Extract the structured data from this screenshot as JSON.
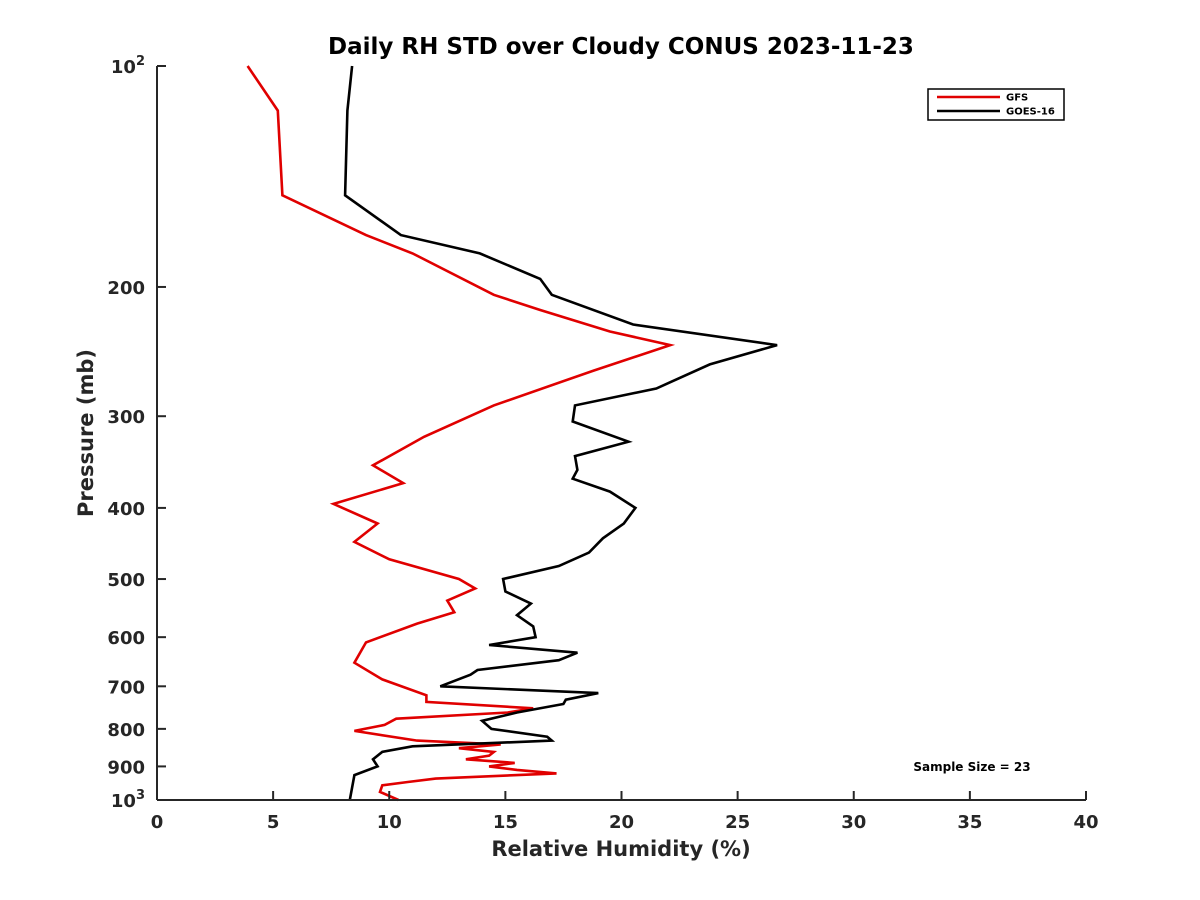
{
  "chart_data": {
    "type": "line",
    "title": "Daily RH STD over Cloudy CONUS 2023-11-23",
    "xlabel": "Relative Humidity (%)",
    "ylabel": "Pressure (mb)",
    "xlim": [
      0,
      40
    ],
    "ylim": [
      100,
      1000
    ],
    "y_scale": "log",
    "y_reversed": true,
    "grid": false,
    "legend_position": "top-right",
    "x_ticks": [
      0,
      5,
      10,
      15,
      20,
      25,
      30,
      35,
      40
    ],
    "x_tick_labels": [
      "0",
      "5",
      "10",
      "15",
      "20",
      "25",
      "30",
      "35",
      "40"
    ],
    "y_ticks": [
      {
        "value": 100,
        "base": "10",
        "exp": "2"
      },
      {
        "value": 200,
        "label": "200"
      },
      {
        "value": 300,
        "label": "300"
      },
      {
        "value": 400,
        "label": "400"
      },
      {
        "value": 500,
        "label": "500"
      },
      {
        "value": 600,
        "label": "600"
      },
      {
        "value": 700,
        "label": "700"
      },
      {
        "value": 800,
        "label": "800"
      },
      {
        "value": 900,
        "label": "900"
      },
      {
        "value": 1000,
        "base": "10",
        "exp": "3"
      }
    ],
    "annotation": "Sample Size = 23",
    "series": [
      {
        "name": "GFS",
        "color": "#e00000",
        "points": [
          [
            3.9,
            100
          ],
          [
            5.2,
            115
          ],
          [
            5.4,
            150
          ],
          [
            9.0,
            170
          ],
          [
            11.0,
            180
          ],
          [
            14.5,
            205
          ],
          [
            16.5,
            215
          ],
          [
            19.5,
            230
          ],
          [
            22.1,
            240
          ],
          [
            18.8,
            260
          ],
          [
            14.5,
            290
          ],
          [
            11.5,
            320
          ],
          [
            9.3,
            350
          ],
          [
            10.6,
            370
          ],
          [
            7.6,
            395
          ],
          [
            9.5,
            420
          ],
          [
            8.5,
            445
          ],
          [
            10.0,
            470
          ],
          [
            13.0,
            500
          ],
          [
            13.7,
            515
          ],
          [
            12.5,
            535
          ],
          [
            12.8,
            555
          ],
          [
            11.2,
            575
          ],
          [
            9.0,
            610
          ],
          [
            8.5,
            650
          ],
          [
            9.7,
            685
          ],
          [
            11.6,
            720
          ],
          [
            11.6,
            735
          ],
          [
            16.2,
            750
          ],
          [
            15.1,
            760
          ],
          [
            10.3,
            775
          ],
          [
            9.8,
            790
          ],
          [
            8.5,
            805
          ],
          [
            11.2,
            830
          ],
          [
            14.8,
            840
          ],
          [
            13.0,
            850
          ],
          [
            14.5,
            860
          ],
          [
            14.3,
            870
          ],
          [
            13.3,
            880
          ],
          [
            15.4,
            890
          ],
          [
            14.3,
            900
          ],
          [
            15.5,
            910
          ],
          [
            17.2,
            920
          ],
          [
            12.0,
            935
          ],
          [
            10.8,
            945
          ],
          [
            9.7,
            955
          ],
          [
            9.6,
            975
          ],
          [
            10.4,
            1000
          ]
        ]
      },
      {
        "name": "GOES-16",
        "color": "#000000",
        "points": [
          [
            8.4,
            100
          ],
          [
            8.2,
            115
          ],
          [
            8.1,
            150
          ],
          [
            10.5,
            170
          ],
          [
            13.9,
            180
          ],
          [
            16.5,
            195
          ],
          [
            17.0,
            205
          ],
          [
            20.5,
            225
          ],
          [
            26.7,
            240
          ],
          [
            23.8,
            255
          ],
          [
            21.5,
            275
          ],
          [
            18.0,
            290
          ],
          [
            17.9,
            305
          ],
          [
            20.3,
            325
          ],
          [
            18.0,
            340
          ],
          [
            18.1,
            355
          ],
          [
            17.9,
            365
          ],
          [
            19.5,
            380
          ],
          [
            20.6,
            400
          ],
          [
            20.1,
            420
          ],
          [
            19.2,
            440
          ],
          [
            18.6,
            460
          ],
          [
            17.3,
            480
          ],
          [
            14.9,
            500
          ],
          [
            15.0,
            520
          ],
          [
            16.1,
            540
          ],
          [
            15.5,
            560
          ],
          [
            16.2,
            580
          ],
          [
            16.3,
            600
          ],
          [
            14.3,
            615
          ],
          [
            18.1,
            630
          ],
          [
            17.3,
            645
          ],
          [
            13.8,
            665
          ],
          [
            13.5,
            675
          ],
          [
            12.2,
            700
          ],
          [
            19.0,
            715
          ],
          [
            17.6,
            730
          ],
          [
            17.5,
            740
          ],
          [
            15.5,
            760
          ],
          [
            14.0,
            780
          ],
          [
            14.4,
            800
          ],
          [
            16.8,
            820
          ],
          [
            17.0,
            830
          ],
          [
            11.0,
            845
          ],
          [
            9.7,
            860
          ],
          [
            9.3,
            880
          ],
          [
            9.5,
            900
          ],
          [
            8.5,
            925
          ],
          [
            8.3,
            1000
          ]
        ]
      }
    ]
  }
}
